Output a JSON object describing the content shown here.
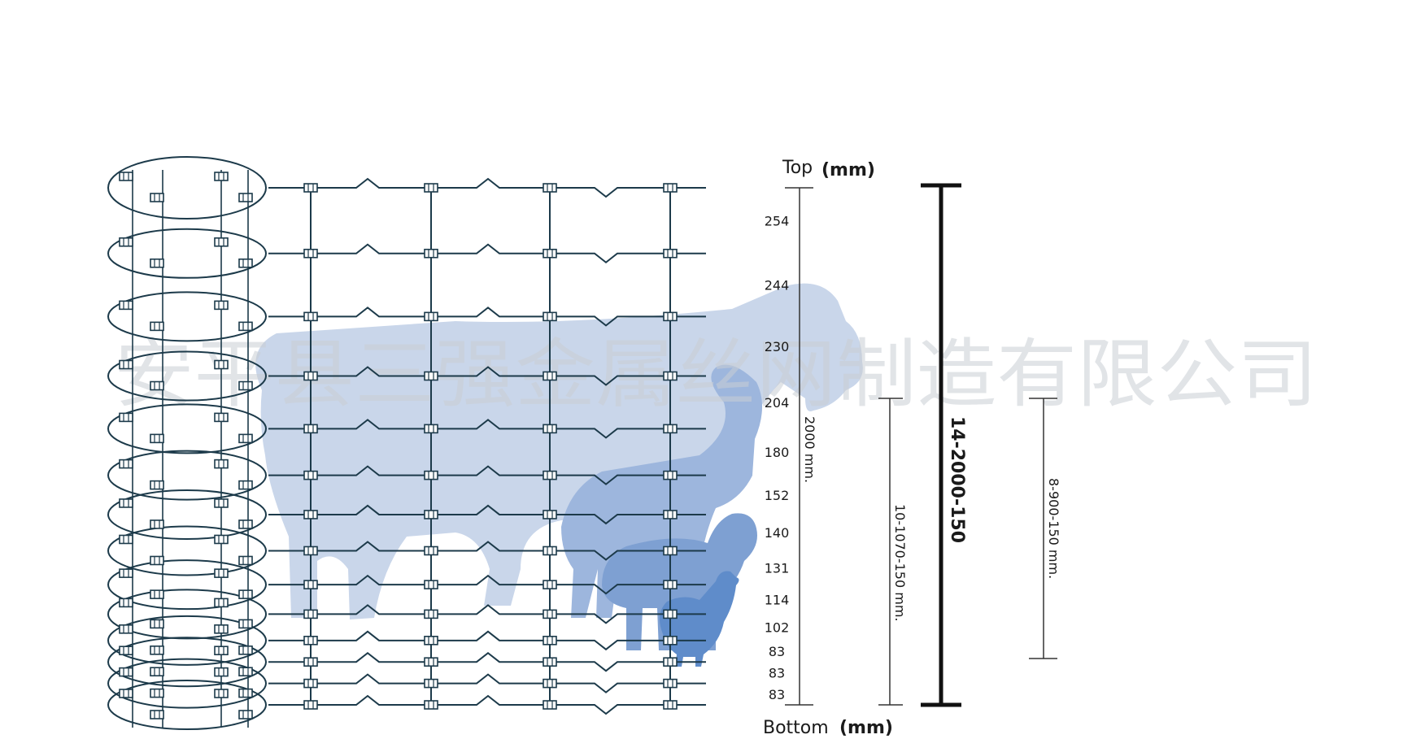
{
  "watermark": "安平县三强金属丝网制造有限公司",
  "top_label": "Top",
  "bottom_label": "Bottom",
  "unit_label": "(mm)",
  "spacings": [
    "254",
    "244",
    "230",
    "204",
    "180",
    "152",
    "140",
    "131",
    "114",
    "102",
    "83",
    "83",
    "83"
  ],
  "total_height_label": "2000 mm.",
  "main_spec": "14-2000-150",
  "mid_spec": "10-1070-150 mm.",
  "small_spec": "8-900-150 mm.",
  "colors": {
    "wire": "#1c3a4a",
    "cow": "#c9d6ea",
    "goat": "#9db6dd",
    "sheep": "#7ea0d2",
    "chicken": "#5f8cca"
  },
  "icons": [
    "cow-silhouette-icon",
    "goat-silhouette-icon",
    "sheep-silhouette-icon",
    "chicken-silhouette-icon",
    "fence-roll-icon"
  ]
}
